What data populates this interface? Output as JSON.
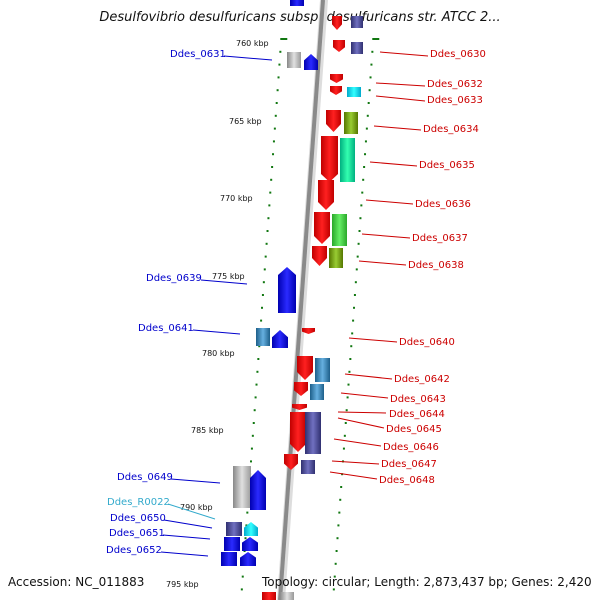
{
  "title": "Desulfovibrio desulfuricans subsp. desulfuricans str. ATCC 2...",
  "footer": {
    "accession": "Accession: NC_011883",
    "topology": "Topology: circular; Length: 2,873,437 bp; Genes: 2,420"
  },
  "colors": {
    "left_label": "#0000cc",
    "right_label": "#cc0000",
    "rna_label": "#33aacc",
    "tick": "#117711",
    "backbone": "#888888"
  },
  "position_labels": [
    "760 kbp",
    "765 kbp",
    "770 kbp",
    "775 kbp",
    "780 kbp",
    "785 kbp",
    "790 kbp",
    "795 kbp"
  ],
  "left_genes": [
    "Ddes_0631",
    "Ddes_0639",
    "Ddes_0641",
    "Ddes_0649",
    "Ddes_R0022",
    "Ddes_0650",
    "Ddes_0651",
    "Ddes_0652"
  ],
  "right_genes": [
    "Ddes_0630",
    "Ddes_0632",
    "Ddes_0633",
    "Ddes_0634",
    "Ddes_0635",
    "Ddes_0636",
    "Ddes_0637",
    "Ddes_0638",
    "Ddes_0640",
    "Ddes_0642",
    "Ddes_0643",
    "Ddes_0644",
    "Ddes_0645",
    "Ddes_0646",
    "Ddes_0647",
    "Ddes_0648"
  ]
}
